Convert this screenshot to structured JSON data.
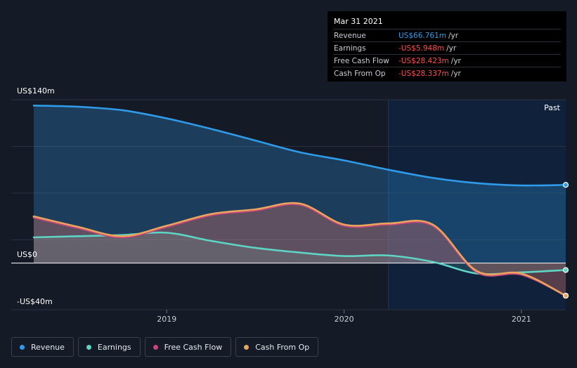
{
  "tooltip": {
    "date": "Mar 31 2021",
    "rows": [
      {
        "name": "Revenue",
        "value": "US$66.761m",
        "unit": "/yr",
        "color": "#2f9be8"
      },
      {
        "name": "Earnings",
        "value": "-US$5.948m",
        "unit": "/yr",
        "color": "#ff4d4d"
      },
      {
        "name": "Free Cash Flow",
        "value": "-US$28.423m",
        "unit": "/yr",
        "color": "#ff4d4d"
      },
      {
        "name": "Cash From Op",
        "value": "-US$28.337m",
        "unit": "/yr",
        "color": "#ff4d4d"
      }
    ]
  },
  "past_label": "Past",
  "chart_data": {
    "type": "area",
    "ylabels": {
      "top": "US$140m",
      "zero": "US$0",
      "bottom": "-US$40m"
    },
    "ylim": [
      -40,
      140
    ],
    "xlim": [
      2018.25,
      2021.25
    ],
    "xticks": [
      {
        "value": 2019.0,
        "label": "2019"
      },
      {
        "value": 2020.0,
        "label": "2020"
      },
      {
        "value": 2021.0,
        "label": "2021"
      }
    ],
    "past_start": 2020.25,
    "series": [
      {
        "name": "Revenue",
        "color": "#2f9be8",
        "x": [
          2018.25,
          2018.5,
          2018.75,
          2019.0,
          2019.25,
          2019.5,
          2019.75,
          2020.0,
          2020.25,
          2020.5,
          2020.75,
          2021.0,
          2021.25
        ],
        "y": [
          135,
          134,
          131,
          124,
          115,
          105,
          95,
          88,
          80,
          73,
          68.5,
          66.5,
          67
        ]
      },
      {
        "name": "Earnings",
        "color": "#5fd4c4",
        "x": [
          2018.25,
          2018.5,
          2018.75,
          2019.0,
          2019.25,
          2019.5,
          2019.75,
          2020.0,
          2020.25,
          2020.5,
          2020.75,
          2021.0,
          2021.25
        ],
        "y": [
          22,
          23,
          24,
          26,
          19,
          13,
          9,
          6,
          6.5,
          1,
          -9,
          -8,
          -6
        ]
      },
      {
        "name": "Free Cash Flow",
        "color": "#c4457b",
        "x": [
          2018.25,
          2018.5,
          2018.75,
          2019.0,
          2019.25,
          2019.5,
          2019.75,
          2020.0,
          2020.25,
          2020.5,
          2020.75,
          2021.0,
          2021.25
        ],
        "y": [
          39,
          30,
          22,
          31,
          41,
          45,
          50,
          32,
          33,
          32,
          -8,
          -10,
          -28
        ]
      },
      {
        "name": "Cash From Op",
        "color": "#e8a35d",
        "x": [
          2018.25,
          2018.5,
          2018.75,
          2019.0,
          2019.25,
          2019.5,
          2019.75,
          2020.0,
          2020.25,
          2020.5,
          2020.75,
          2021.0,
          2021.25
        ],
        "y": [
          40,
          31,
          23,
          32,
          42,
          46,
          51,
          33,
          34,
          33,
          -7,
          -9,
          -28
        ]
      }
    ]
  },
  "legend": [
    {
      "label": "Revenue",
      "color": "#2f9be8"
    },
    {
      "label": "Earnings",
      "color": "#5fd4c4"
    },
    {
      "label": "Free Cash Flow",
      "color": "#c4457b"
    },
    {
      "label": "Cash From Op",
      "color": "#e8a35d"
    }
  ]
}
